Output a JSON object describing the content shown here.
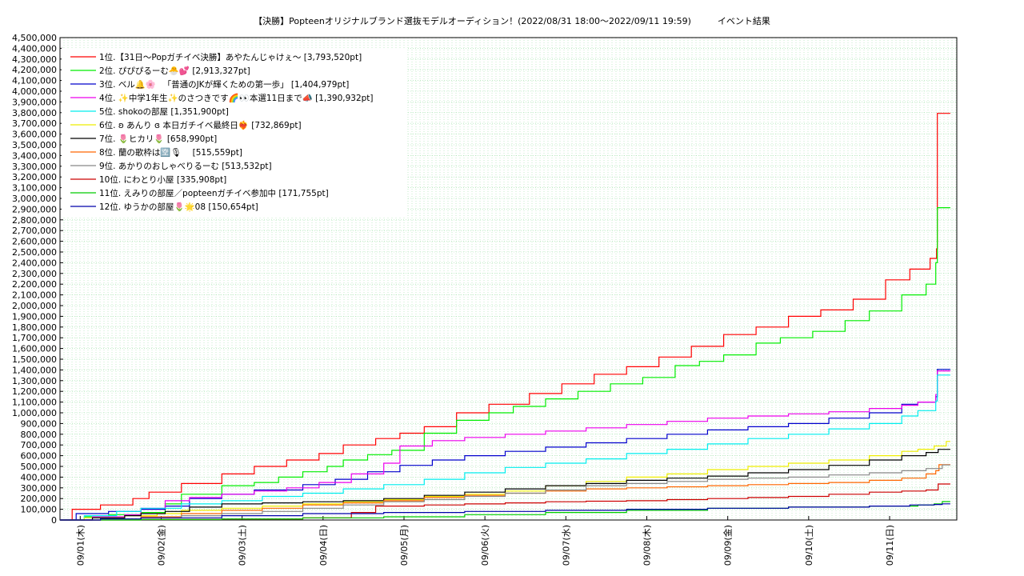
{
  "chart_data": {
    "type": "line",
    "title": "【決勝】Popteenオリジナルブランド選抜モデルオーディション！(2022/08/31 18:00〜2022/09/11 19:59)　　　イベント結果",
    "xlabel": "",
    "ylabel": "",
    "ylim": [
      0,
      4500000
    ],
    "x_range": [
      0,
      11.08
    ],
    "grid": true,
    "legend_position": "top-left",
    "y_ticks": [
      "0",
      "100,000",
      "200,000",
      "300,000",
      "400,000",
      "500,000",
      "600,000",
      "700,000",
      "800,000",
      "900,000",
      "1,000,000",
      "1,100,000",
      "1,200,000",
      "1,300,000",
      "1,400,000",
      "1,500,000",
      "1,600,000",
      "1,700,000",
      "1,800,000",
      "1,900,000",
      "2,000,000",
      "2,100,000",
      "2,200,000",
      "2,300,000",
      "2,400,000",
      "2,500,000",
      "2,600,000",
      "2,700,000",
      "2,800,000",
      "2,900,000",
      "3,000,000",
      "3,100,000",
      "3,200,000",
      "3,300,000",
      "3,400,000",
      "3,500,000",
      "3,600,000",
      "3,700,000",
      "3,800,000",
      "3,900,000",
      "4,000,000",
      "4,100,000",
      "4,200,000",
      "4,300,000",
      "4,400,000",
      "4,500,000"
    ],
    "x_ticks": [
      {
        "x": 0.25,
        "label": "09/01(木)"
      },
      {
        "x": 1.25,
        "label": "09/02(金)"
      },
      {
        "x": 2.25,
        "label": "09/03(土)"
      },
      {
        "x": 3.25,
        "label": "09/04(日)"
      },
      {
        "x": 4.25,
        "label": "09/05(月)"
      },
      {
        "x": 5.25,
        "label": "09/06(火)"
      },
      {
        "x": 6.25,
        "label": "09/07(水)"
      },
      {
        "x": 7.25,
        "label": "09/08(木)"
      },
      {
        "x": 8.25,
        "label": "09/09(金)"
      },
      {
        "x": 9.25,
        "label": "09/10(土)"
      },
      {
        "x": 10.25,
        "label": "09/11(日)"
      }
    ],
    "series": [
      {
        "name": "1位.【31日〜Popガチイベ決勝】あやたんじゃけぇ〜 [3,793,520pt]",
        "color": "#ff0000",
        "x": [
          0,
          0.15,
          0.5,
          0.9,
          1.1,
          1.5,
          2.0,
          2.4,
          2.8,
          3.2,
          3.5,
          3.9,
          4.2,
          4.5,
          4.9,
          5.3,
          5.8,
          6.2,
          6.6,
          7.0,
          7.4,
          7.8,
          8.2,
          8.6,
          9.0,
          9.4,
          9.8,
          10.2,
          10.5,
          10.75,
          10.83,
          10.84,
          11.0
        ],
        "y": [
          0,
          100000,
          140000,
          200000,
          260000,
          340000,
          430000,
          500000,
          560000,
          620000,
          700000,
          760000,
          810000,
          870000,
          1000000,
          1080000,
          1180000,
          1270000,
          1360000,
          1430000,
          1520000,
          1620000,
          1730000,
          1800000,
          1900000,
          1960000,
          2060000,
          2240000,
          2340000,
          2440000,
          2530000,
          3793520,
          3793520
        ]
      },
      {
        "name": "2位. ぴぴぴるーむ🐣💕 [2,913,327pt]",
        "color": "#00ee00",
        "x": [
          0,
          0.3,
          0.6,
          1.0,
          1.3,
          1.5,
          2.0,
          2.4,
          2.7,
          3.0,
          3.3,
          3.5,
          3.8,
          4.1,
          4.5,
          4.9,
          5.3,
          5.6,
          6.0,
          6.4,
          6.8,
          7.2,
          7.6,
          7.9,
          8.2,
          8.6,
          8.9,
          9.3,
          9.7,
          10.0,
          10.4,
          10.7,
          10.82,
          10.84,
          11.0
        ],
        "y": [
          0,
          30000,
          50000,
          70000,
          150000,
          240000,
          320000,
          350000,
          400000,
          450000,
          500000,
          560000,
          610000,
          650000,
          810000,
          930000,
          1000000,
          1060000,
          1130000,
          1200000,
          1270000,
          1330000,
          1440000,
          1480000,
          1540000,
          1650000,
          1700000,
          1760000,
          1860000,
          1950000,
          2100000,
          2200000,
          2400000,
          2913327,
          2913327
        ]
      },
      {
        "name": "3位. ベル🔔🌸 　「普通のJKが輝くための第一歩」 [1,404,979pt]",
        "color": "#0000cc",
        "x": [
          0,
          0.2,
          0.6,
          1.0,
          1.3,
          1.6,
          2.0,
          2.4,
          3.0,
          3.4,
          3.8,
          4.2,
          4.6,
          5.0,
          5.5,
          6.0,
          6.5,
          7.0,
          7.5,
          8.0,
          8.5,
          9.0,
          9.5,
          10.0,
          10.4,
          10.6,
          10.82,
          10.84,
          11.0
        ],
        "y": [
          0,
          60000,
          80000,
          100000,
          130000,
          200000,
          240000,
          280000,
          330000,
          380000,
          450000,
          510000,
          560000,
          600000,
          640000,
          680000,
          720000,
          760000,
          800000,
          840000,
          870000,
          900000,
          950000,
          1000000,
          1080000,
          1100000,
          1150000,
          1404979,
          1404979
        ]
      },
      {
        "name": "4位. ✨中学1年生✨のさつきです🌈👀本選11日まで📣 [1,390,932pt]",
        "color": "#ee00ee",
        "x": [
          0,
          0.4,
          0.8,
          1.0,
          1.3,
          1.6,
          2.0,
          2.4,
          2.8,
          3.2,
          3.6,
          4.0,
          4.2,
          4.6,
          5.0,
          5.5,
          6.0,
          6.5,
          7.0,
          7.5,
          8.0,
          8.5,
          9.0,
          9.5,
          10.0,
          10.4,
          10.6,
          10.82,
          10.84,
          11.0
        ],
        "y": [
          0,
          30000,
          50000,
          110000,
          180000,
          210000,
          240000,
          270000,
          300000,
          350000,
          430000,
          530000,
          690000,
          740000,
          770000,
          800000,
          830000,
          860000,
          890000,
          920000,
          950000,
          970000,
          990000,
          1010000,
          1040000,
          1070000,
          1100000,
          1170000,
          1390932,
          1390932
        ]
      },
      {
        "name": "5位. shokoの部屋 [1,351,900pt]",
        "color": "#00eeee",
        "x": [
          0,
          0.3,
          0.7,
          1.0,
          1.5,
          2.0,
          2.5,
          3.0,
          3.5,
          4.0,
          4.5,
          5.0,
          5.5,
          6.0,
          6.5,
          7.0,
          7.5,
          8.0,
          8.5,
          9.0,
          9.5,
          10.0,
          10.4,
          10.6,
          10.82,
          10.84,
          11.0
        ],
        "y": [
          0,
          40000,
          80000,
          110000,
          150000,
          180000,
          220000,
          250000,
          290000,
          330000,
          380000,
          440000,
          490000,
          530000,
          570000,
          620000,
          660000,
          710000,
          760000,
          800000,
          850000,
          900000,
          970000,
          1020000,
          1110000,
          1351900,
          1351900
        ]
      },
      {
        "name": "6位. ʚ あんり ɞ 本日ガチイベ最終日❤‍🔥 [732,869pt]",
        "color": "#eeee00",
        "x": [
          0,
          0.3,
          0.8,
          1.2,
          1.5,
          2.0,
          2.5,
          3.0,
          3.5,
          4.0,
          4.5,
          5.0,
          5.5,
          6.0,
          6.5,
          7.0,
          7.5,
          8.0,
          8.5,
          9.0,
          9.5,
          10.0,
          10.4,
          10.6,
          10.8,
          10.95,
          11.0
        ],
        "y": [
          0,
          20000,
          40000,
          60000,
          90000,
          110000,
          130000,
          150000,
          170000,
          190000,
          220000,
          240000,
          270000,
          320000,
          360000,
          400000,
          430000,
          470000,
          500000,
          530000,
          560000,
          600000,
          640000,
          660000,
          690000,
          732869,
          732869
        ]
      },
      {
        "name": "7位. 🌷ヒカリ🌷 [658,990pt]",
        "color": "#000000",
        "x": [
          0,
          0.4,
          0.8,
          1.0,
          1.3,
          1.6,
          2.0,
          2.5,
          3.0,
          3.5,
          4.0,
          4.5,
          5.0,
          5.5,
          6.0,
          6.5,
          7.0,
          7.5,
          8.0,
          8.5,
          9.0,
          9.5,
          10.0,
          10.4,
          10.7,
          10.85,
          11.0
        ],
        "y": [
          0,
          20000,
          40000,
          60000,
          80000,
          120000,
          150000,
          160000,
          170000,
          180000,
          200000,
          230000,
          260000,
          290000,
          320000,
          340000,
          370000,
          390000,
          410000,
          440000,
          470000,
          510000,
          560000,
          600000,
          630000,
          658990,
          658990
        ]
      },
      {
        "name": "8位. 蘭の歌枠は🈳🎙　 [515,559pt]",
        "color": "#ff6600",
        "x": [
          0,
          0.5,
          1.0,
          1.5,
          2.0,
          2.5,
          3.0,
          3.5,
          4.0,
          4.5,
          5.0,
          5.5,
          6.0,
          6.5,
          7.0,
          7.5,
          8.0,
          8.5,
          9.0,
          9.5,
          10.0,
          10.4,
          10.7,
          10.82,
          10.86,
          11.0
        ],
        "y": [
          0,
          10000,
          30000,
          60000,
          90000,
          110000,
          140000,
          160000,
          180000,
          210000,
          230000,
          250000,
          270000,
          290000,
          300000,
          310000,
          320000,
          330000,
          340000,
          350000,
          370000,
          390000,
          430000,
          460000,
          515559,
          515559
        ]
      },
      {
        "name": "9位. あかりのおしゃべりるーむ [513,532pt]",
        "color": "#888888",
        "x": [
          0,
          0.5,
          1.0,
          1.5,
          2.0,
          2.5,
          3.0,
          3.5,
          4.0,
          4.5,
          5.0,
          5.5,
          6.0,
          6.5,
          7.0,
          7.5,
          8.0,
          8.5,
          9.0,
          9.5,
          10.0,
          10.4,
          10.7,
          10.9,
          11.0
        ],
        "y": [
          0,
          10000,
          20000,
          40000,
          60000,
          80000,
          110000,
          140000,
          170000,
          190000,
          220000,
          250000,
          280000,
          320000,
          340000,
          360000,
          380000,
          390000,
          400000,
          420000,
          440000,
          460000,
          480000,
          513532,
          513532
        ]
      },
      {
        "name": "10位. にわとり小屋 [335,908pt]",
        "color": "#cc0000",
        "x": [
          0,
          1.0,
          2.0,
          3.0,
          3.6,
          3.9,
          4.5,
          5.0,
          5.5,
          6.0,
          6.5,
          7.0,
          7.5,
          8.0,
          8.5,
          9.0,
          9.5,
          10.0,
          10.4,
          10.7,
          10.85,
          11.0
        ],
        "y": [
          0,
          5000,
          10000,
          20000,
          70000,
          130000,
          140000,
          150000,
          160000,
          170000,
          175000,
          180000,
          190000,
          200000,
          210000,
          220000,
          240000,
          260000,
          270000,
          280000,
          335908,
          335908
        ]
      },
      {
        "name": "11位. えみりの部屋／popteenガチイベ参加中 [171,755pt]",
        "color": "#00cc00",
        "x": [
          0,
          1.0,
          2.0,
          3.0,
          4.0,
          5.0,
          6.0,
          7.0,
          8.0,
          9.0,
          10.0,
          10.6,
          10.8,
          10.9,
          11.0
        ],
        "y": [
          0,
          5000,
          10000,
          20000,
          30000,
          50000,
          70000,
          90000,
          110000,
          120000,
          130000,
          140000,
          150000,
          171755,
          171755
        ]
      },
      {
        "name": "12位. ゆうかの部屋🌷🌟08 [150,654pt]",
        "color": "#0000aa",
        "x": [
          0,
          0.5,
          1.0,
          2.0,
          3.0,
          4.0,
          5.0,
          6.0,
          7.0,
          8.0,
          9.0,
          10.0,
          10.5,
          10.8,
          10.9,
          11.0
        ],
        "y": [
          0,
          10000,
          20000,
          40000,
          60000,
          70000,
          80000,
          90000,
          100000,
          110000,
          120000,
          130000,
          140000,
          145000,
          150654,
          150654
        ]
      }
    ]
  }
}
